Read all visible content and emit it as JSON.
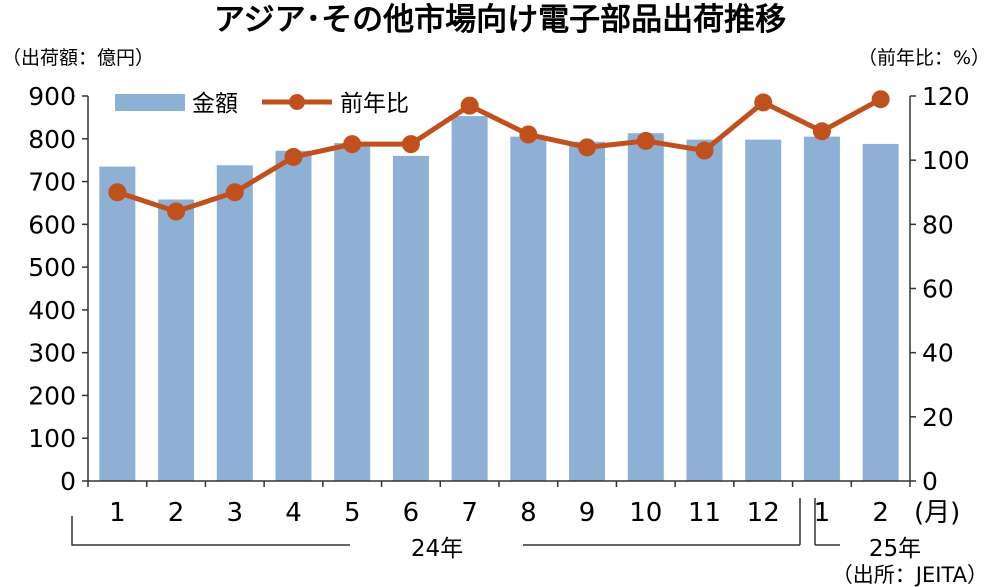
{
  "title": "アジア･その他市場向け電子部品出荷推移",
  "left_unit": "（出荷額：億円）",
  "right_unit": "（前年比：%）",
  "month_suffix": "(月)",
  "year_labels": [
    "24年",
    "25年"
  ],
  "source": "（出所：JEITA）",
  "colors": {
    "bar": "#8db0d4",
    "line": "#c0511f",
    "axis": "#333333"
  },
  "chart_data": {
    "type": "bar",
    "title": "アジア･その他市場向け電子部品出荷推移",
    "categories": [
      "1",
      "2",
      "3",
      "4",
      "5",
      "6",
      "7",
      "8",
      "9",
      "10",
      "11",
      "12",
      "1",
      "2"
    ],
    "ylim": [
      0,
      900
    ],
    "y2lim": [
      0,
      120
    ],
    "yticks": [
      0,
      100,
      200,
      300,
      400,
      500,
      600,
      700,
      800,
      900
    ],
    "y2ticks": [
      0,
      20,
      40,
      60,
      80,
      100,
      120
    ],
    "legend": "top-left",
    "series": [
      {
        "name": "金額",
        "type": "bar",
        "axis": "left",
        "values": [
          735,
          658,
          738,
          772,
          790,
          760,
          853,
          805,
          793,
          813,
          798,
          798,
          805,
          788
        ]
      },
      {
        "name": "前年比",
        "type": "line",
        "axis": "right",
        "values": [
          90,
          84,
          90,
          101,
          105,
          105,
          117,
          108,
          104,
          106,
          103,
          118,
          109,
          119
        ]
      }
    ]
  }
}
